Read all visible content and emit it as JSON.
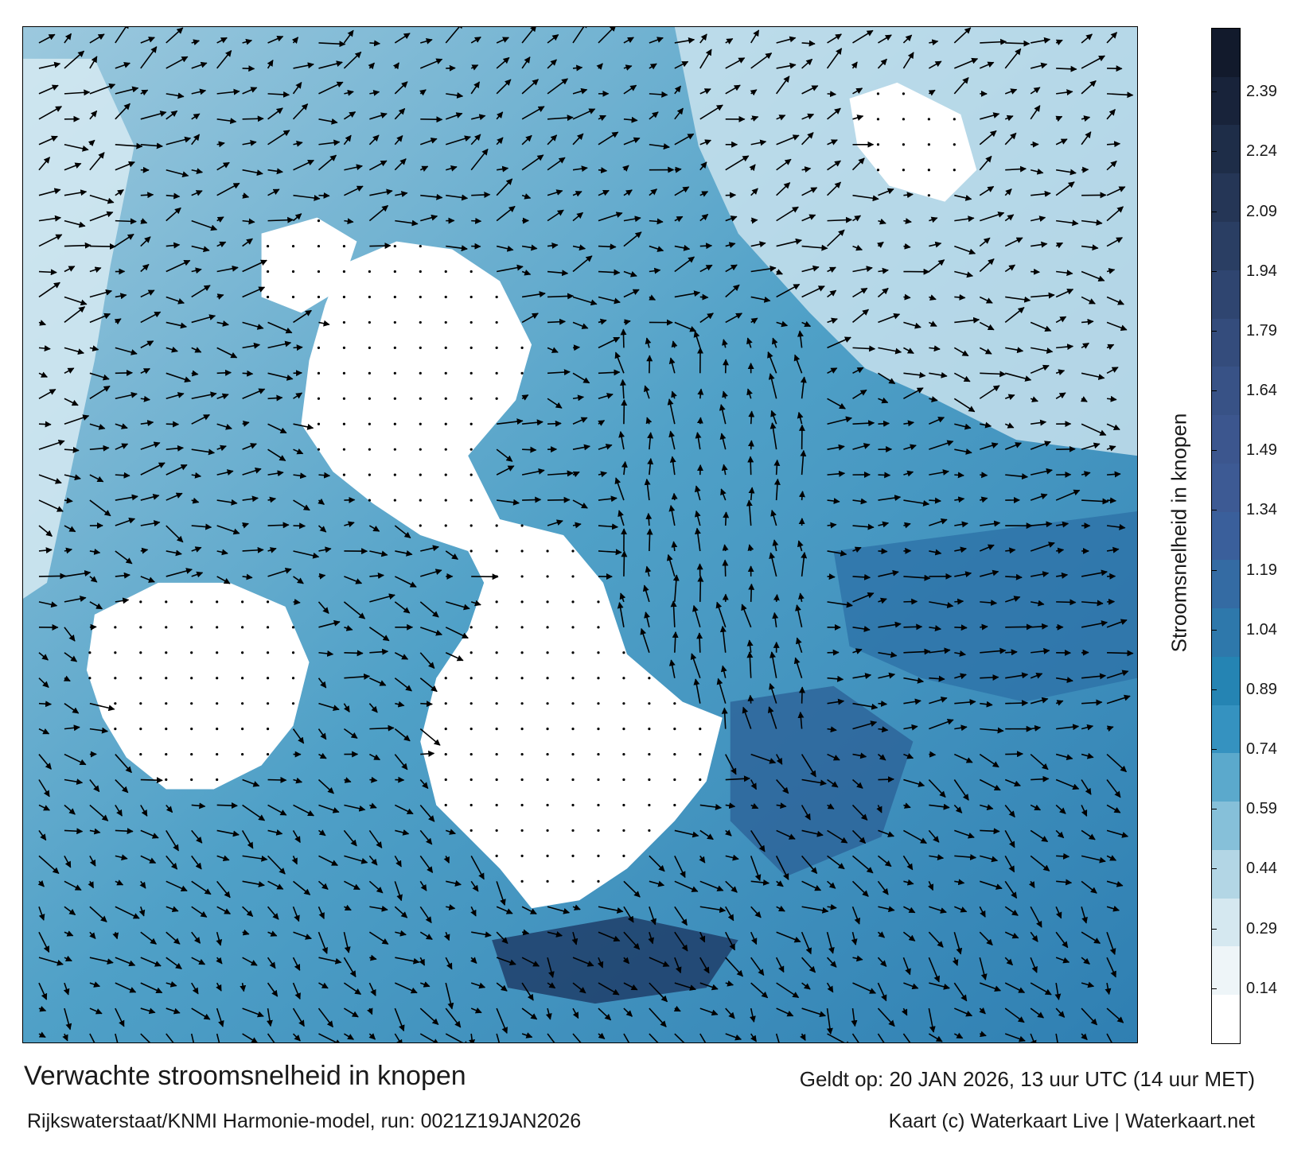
{
  "title": "Verwachte stroomsnelheid in knopen",
  "valid_time": "Geldt op: 20 JAN 2026, 13 uur UTC (14 uur MET)",
  "source": "Rijkswaterstaat/KNMI Harmonie-model, run: 0021Z19JAN2026",
  "credit": "Kaart (c) Waterkaart Live | Waterkaart.net",
  "colorbar": {
    "label": "Stroomsnelheid in knopen",
    "ticks": [
      "2.39",
      "2.24",
      "2.09",
      "1.94",
      "1.79",
      "1.64",
      "1.49",
      "1.34",
      "1.19",
      "1.04",
      "0.89",
      "0.74",
      "0.59",
      "0.44",
      "0.29",
      "0.14"
    ],
    "tick_values": [
      2.39,
      2.24,
      2.09,
      1.94,
      1.79,
      1.64,
      1.49,
      1.34,
      1.19,
      1.04,
      0.89,
      0.74,
      0.59,
      0.44,
      0.29,
      0.14
    ],
    "range": [
      0,
      2.55
    ],
    "colors": [
      "#ffffff",
      "#eef5f8",
      "#d5e8f0",
      "#b3d6e5",
      "#86c0d9",
      "#5ba9cc",
      "#3592c0",
      "#2584b3",
      "#2e78ab",
      "#346ba3",
      "#3a5f9b",
      "#3d5a94",
      "#3c568e",
      "#385286",
      "#344c7c",
      "#2f4570",
      "#2a3e63",
      "#253656",
      "#1e2d48",
      "#18233a",
      "#121a2c"
    ]
  },
  "map": {
    "land_color": "#ffffff",
    "water_base_color": "#5ba9cc",
    "arrow_color": "#000000"
  }
}
